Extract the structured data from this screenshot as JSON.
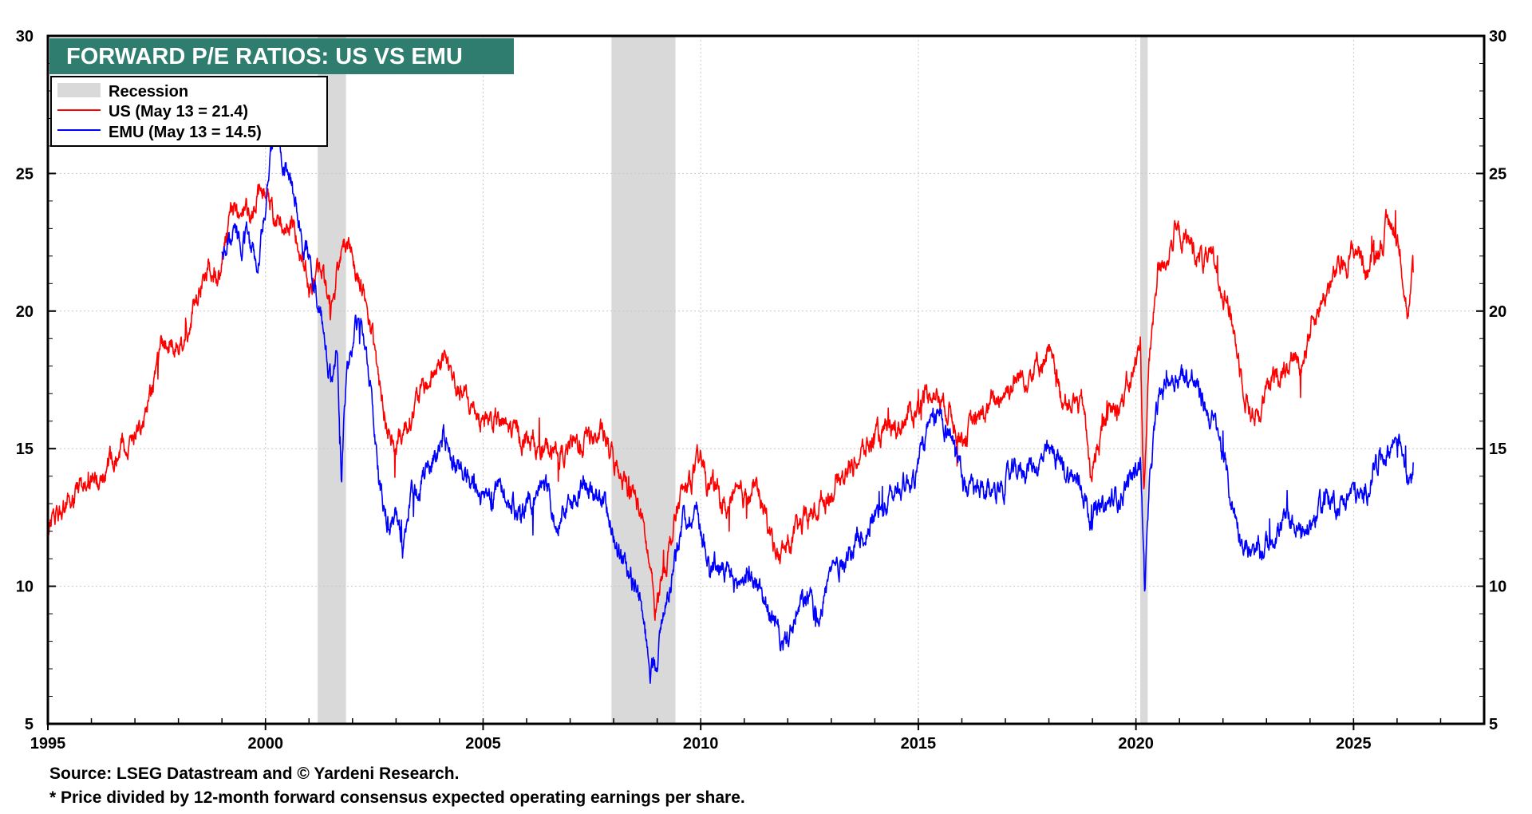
{
  "footer": {
    "source": "Source: LSEG Datastream and © Yardeni Research.",
    "note": "* Price divided by 12-month forward consensus expected operating earnings per share."
  },
  "chart_data": {
    "type": "line",
    "title": "FORWARD P/E RATIOS: US VS EMU",
    "title_bg_color": "#2e7d6e",
    "xlim": [
      1995,
      2028
    ],
    "ylim": [
      5,
      30
    ],
    "x_ticks": [
      1995,
      2000,
      2005,
      2010,
      2015,
      2020,
      2025
    ],
    "y_ticks": [
      5,
      10,
      15,
      20,
      25,
      30
    ],
    "grid": true,
    "legend_position": "top-left",
    "recession": {
      "label": "Recession",
      "color": "#d9d9d9",
      "periods": [
        [
          2001.2,
          2001.85
        ],
        [
          2007.95,
          2009.42
        ],
        [
          2020.1,
          2020.27
        ]
      ]
    },
    "series": [
      {
        "name": "US (May 13 = 21.4)",
        "color": "#ff0000",
        "x": [
          1995.0,
          1995.5,
          1996.0,
          1996.5,
          1997.0,
          1997.3,
          1997.6,
          1997.8,
          1998.0,
          1998.3,
          1998.5,
          1998.7,
          1998.9,
          1999.2,
          1999.5,
          1999.8,
          2000.0,
          2000.2,
          2000.5,
          2000.8,
          2001.0,
          2001.3,
          2001.5,
          2001.7,
          2001.9,
          2002.1,
          2002.3,
          2002.6,
          2002.8,
          2003.0,
          2003.2,
          2003.5,
          2003.8,
          2004.1,
          2004.4,
          2004.7,
          2005.0,
          2005.5,
          2006.0,
          2006.4,
          2006.8,
          2007.2,
          2007.5,
          2007.8,
          2008.0,
          2008.3,
          2008.6,
          2008.8,
          2008.95,
          2009.1,
          2009.3,
          2009.5,
          2009.8,
          2010.0,
          2010.3,
          2010.6,
          2011.0,
          2011.3,
          2011.6,
          2011.8,
          2012.0,
          2012.5,
          2013.0,
          2013.5,
          2014.0,
          2014.5,
          2015.0,
          2015.3,
          2015.7,
          2016.0,
          2016.5,
          2017.0,
          2017.5,
          2018.0,
          2018.2,
          2018.5,
          2018.8,
          2018.95,
          2019.3,
          2019.7,
          2020.0,
          2020.1,
          2020.18,
          2020.3,
          2020.5,
          2020.7,
          2020.9,
          2021.2,
          2021.6,
          2021.9,
          2022.1,
          2022.4,
          2022.6,
          2022.8,
          2023.0,
          2023.3,
          2023.6,
          2023.8,
          2024.0,
          2024.3,
          2024.6,
          2024.9,
          2025.1,
          2025.3,
          2025.5,
          2025.7,
          2025.9,
          2026.1,
          2026.25,
          2026.37
        ],
        "values": [
          12.3,
          13.0,
          13.8,
          14.5,
          15.5,
          16.8,
          18.5,
          19.0,
          18.8,
          19.8,
          21.0,
          21.8,
          21.2,
          23.5,
          23.8,
          24.0,
          24.5,
          23.5,
          23.2,
          22.5,
          21.0,
          21.5,
          20.0,
          22.0,
          22.5,
          21.5,
          20.5,
          17.5,
          15.5,
          15.2,
          15.8,
          16.8,
          17.5,
          18.4,
          17.2,
          16.5,
          16.2,
          15.8,
          15.3,
          15.0,
          14.8,
          15.2,
          15.5,
          15.3,
          14.5,
          14.0,
          12.8,
          11.0,
          9.0,
          10.5,
          11.5,
          13.0,
          14.0,
          14.5,
          13.5,
          12.8,
          13.2,
          13.5,
          12.0,
          11.0,
          11.5,
          12.5,
          13.5,
          14.5,
          15.3,
          15.8,
          16.5,
          17.2,
          16.5,
          15.5,
          16.2,
          17.2,
          17.8,
          18.5,
          17.0,
          16.8,
          16.5,
          14.0,
          16.0,
          16.8,
          18.0,
          19.0,
          13.5,
          18.0,
          21.5,
          22.0,
          22.8,
          22.5,
          21.8,
          21.5,
          20.5,
          18.0,
          16.5,
          16.2,
          17.0,
          17.8,
          18.5,
          18.0,
          19.5,
          20.5,
          21.3,
          22.0,
          22.3,
          21.5,
          22.0,
          22.8,
          23.3,
          22.0,
          19.8,
          21.4
        ]
      },
      {
        "name": "EMU (May 13 = 14.5)",
        "color": "#0000ff",
        "x": [
          1999.0,
          1999.3,
          1999.6,
          1999.8,
          2000.0,
          2000.2,
          2000.4,
          2000.7,
          2000.9,
          2001.1,
          2001.3,
          2001.5,
          2001.65,
          2001.75,
          2001.85,
          2002.0,
          2002.2,
          2002.4,
          2002.6,
          2002.8,
          2003.0,
          2003.15,
          2003.3,
          2003.6,
          2003.9,
          2004.1,
          2004.3,
          2004.6,
          2004.9,
          2005.2,
          2005.5,
          2005.8,
          2006.1,
          2006.4,
          2006.7,
          2007.0,
          2007.3,
          2007.6,
          2007.9,
          2008.1,
          2008.3,
          2008.5,
          2008.7,
          2008.85,
          2009.0,
          2009.2,
          2009.4,
          2009.6,
          2009.9,
          2010.2,
          2010.5,
          2010.8,
          2011.1,
          2011.4,
          2011.7,
          2011.9,
          2012.1,
          2012.4,
          2012.7,
          2013.0,
          2013.5,
          2014.0,
          2014.5,
          2014.9,
          2015.2,
          2015.5,
          2015.8,
          2016.1,
          2016.5,
          2017.0,
          2017.4,
          2017.8,
          2018.1,
          2018.5,
          2018.8,
          2018.95,
          2019.3,
          2019.7,
          2020.0,
          2020.1,
          2020.2,
          2020.35,
          2020.5,
          2020.7,
          2021.0,
          2021.3,
          2021.6,
          2021.9,
          2022.2,
          2022.5,
          2022.7,
          2022.9,
          2023.2,
          2023.5,
          2023.8,
          2024.1,
          2024.4,
          2024.7,
          2025.0,
          2025.2,
          2025.5,
          2025.8,
          2026.0,
          2026.15,
          2026.25,
          2026.37
        ],
        "values": [
          22.0,
          22.8,
          22.5,
          21.8,
          24.0,
          26.5,
          25.5,
          24.0,
          22.5,
          21.0,
          20.0,
          17.5,
          18.5,
          14.0,
          17.5,
          19.0,
          19.5,
          17.5,
          14.0,
          12.5,
          12.5,
          11.0,
          13.0,
          14.0,
          14.8,
          15.5,
          14.5,
          14.0,
          13.5,
          13.2,
          13.5,
          12.5,
          13.0,
          13.5,
          12.5,
          13.0,
          13.5,
          13.3,
          12.5,
          11.5,
          10.5,
          10.0,
          8.5,
          7.0,
          7.5,
          9.5,
          11.0,
          12.5,
          12.8,
          11.0,
          10.5,
          10.0,
          10.5,
          9.8,
          8.5,
          7.8,
          8.5,
          9.5,
          9.0,
          10.5,
          11.5,
          12.5,
          13.5,
          14.0,
          15.5,
          16.2,
          15.5,
          13.5,
          13.2,
          13.8,
          14.3,
          14.5,
          14.8,
          14.0,
          13.5,
          12.5,
          12.8,
          13.5,
          14.2,
          14.8,
          10.0,
          14.5,
          16.5,
          17.5,
          17.8,
          17.5,
          16.5,
          15.5,
          13.0,
          11.5,
          11.0,
          11.2,
          12.0,
          12.5,
          11.8,
          12.5,
          13.2,
          13.0,
          13.5,
          13.0,
          14.5,
          15.0,
          15.5,
          15.0,
          14.0,
          14.5
        ]
      }
    ]
  }
}
